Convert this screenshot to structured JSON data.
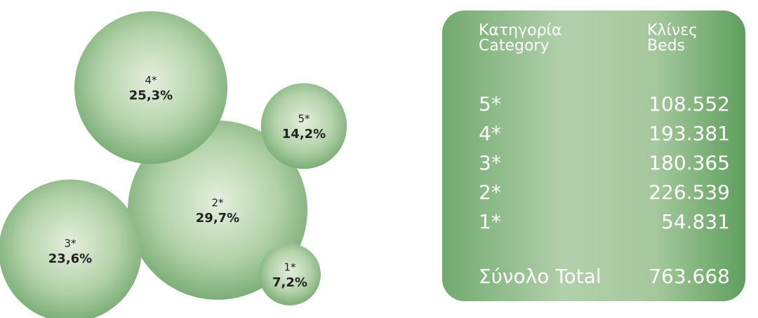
{
  "chart_data": {
    "type": "bubble",
    "categories": [
      "5*",
      "4*",
      "3*",
      "2*",
      "1*"
    ],
    "values": [
      14.2,
      25.3,
      23.6,
      29.7,
      7.2
    ],
    "value_labels": [
      "14,2%",
      "25,3%",
      "23,6%",
      "29,7%",
      "7,2%"
    ]
  },
  "table": {
    "header": [
      [
        "Κατηγορία",
        "Category"
      ],
      [
        "Κλίνες",
        "Beds"
      ]
    ],
    "rows": [
      [
        "5*",
        "108.552"
      ],
      [
        "4*",
        "193.381"
      ],
      [
        "3*",
        "180.365"
      ],
      [
        "2*",
        "226.539"
      ],
      [
        "1*",
        "54.831"
      ]
    ],
    "total": [
      "Σύνολο Total",
      "763.668"
    ]
  }
}
